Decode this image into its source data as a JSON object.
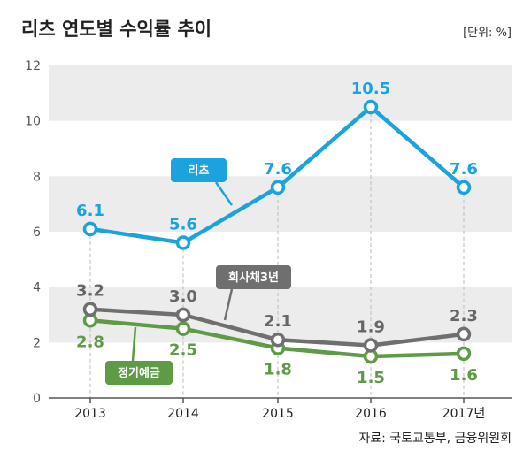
{
  "title": "리츠 연도별 수익률 추이",
  "unit_label": "[단위: %]",
  "source": "자료: 국토교통부, 금융위원회",
  "colors": {
    "reits": "#1ba3dd",
    "corp_bond": "#6f6f6f",
    "deposit": "#5f9a47",
    "stripe": "#ececec",
    "grid": "#bbbbbb"
  },
  "chart_data": {
    "type": "line",
    "title": "리츠 연도별 수익률 추이",
    "unit": "%",
    "x": [
      "2013",
      "2014",
      "2015",
      "2016",
      "2017년"
    ],
    "ylim": [
      0,
      12
    ],
    "yticks": [
      "0",
      "2",
      "4",
      "6",
      "8",
      "10",
      "12"
    ],
    "series": [
      {
        "name": "리츠",
        "values": [
          6.1,
          5.6,
          7.6,
          10.5,
          7.6
        ],
        "labels": [
          "6.1",
          "5.6",
          "7.6",
          "10.5",
          "7.6"
        ]
      },
      {
        "name": "회사채3년",
        "values": [
          3.2,
          3.0,
          2.1,
          1.9,
          2.3
        ],
        "labels": [
          "3.2",
          "3.0",
          "2.1",
          "1.9",
          "2.3"
        ]
      },
      {
        "name": "정기예금",
        "values": [
          2.8,
          2.5,
          1.8,
          1.5,
          1.6
        ],
        "labels": [
          "2.8",
          "2.5",
          "1.8",
          "1.5",
          "1.6"
        ]
      }
    ]
  }
}
